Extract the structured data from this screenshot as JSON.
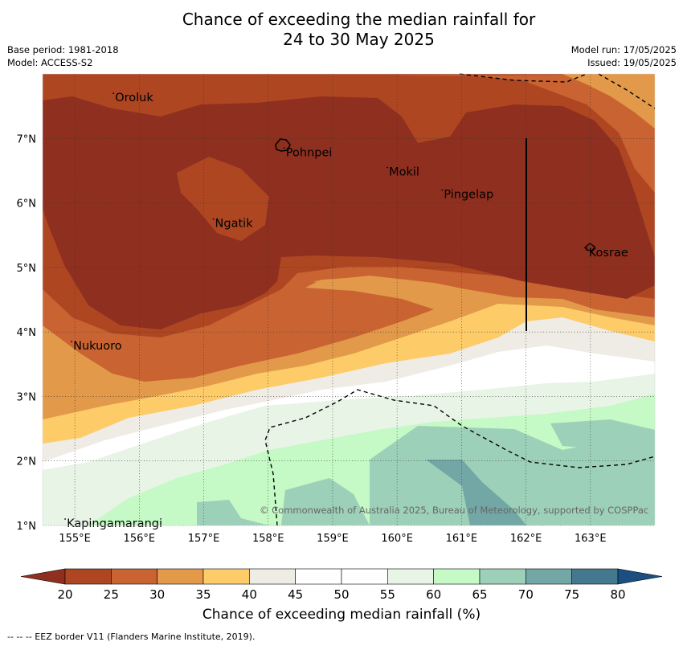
{
  "title": {
    "line1": "Chance of exceeding the median rainfall for",
    "line2": "24 to 30 May 2025"
  },
  "meta": {
    "base_period": "Base period: 1981-2018",
    "model": "Model: ACCESS-S2",
    "model_run": "Model run: 17/05/2025",
    "issued": "Issued: 19/05/2025"
  },
  "map": {
    "longitude_ticks": [
      "155°E",
      "156°E",
      "157°E",
      "158°E",
      "159°E",
      "160°E",
      "161°E",
      "162°E",
      "163°E"
    ],
    "latitude_ticks": [
      "1°N",
      "2°N",
      "3°N",
      "4°N",
      "5°N",
      "6°N",
      "7°N"
    ],
    "lon_range": [
      154.5,
      164
    ],
    "lat_range": [
      1,
      8
    ],
    "places": [
      {
        "name": "Oroluk",
        "lon": 155.6,
        "lat": 7.7
      },
      {
        "name": "Pohnpei",
        "lon": 158.25,
        "lat": 6.85
      },
      {
        "name": "Mokil",
        "lon": 159.85,
        "lat": 6.55
      },
      {
        "name": "Pingelap",
        "lon": 160.7,
        "lat": 6.2
      },
      {
        "name": "Ngatik",
        "lon": 157.15,
        "lat": 5.75
      },
      {
        "name": "Kosrae",
        "lon": 162.95,
        "lat": 5.3
      },
      {
        "name": "Nukuoro",
        "lon": 154.95,
        "lat": 3.85
      },
      {
        "name": "Kapingamarangi",
        "lon": 154.85,
        "lat": 1.1
      }
    ],
    "copyright": "© Commonwealth of Australia 2025, Bureau of Meteorology, supported by COSPPac"
  },
  "colorbar": {
    "ticks": [
      "20",
      "25",
      "30",
      "35",
      "40",
      "45",
      "50",
      "55",
      "60",
      "65",
      "70",
      "75",
      "80"
    ],
    "colors": [
      "#8f2f1f",
      "#ae4622",
      "#c96332",
      "#e2994a",
      "#fdcb68",
      "#eeece4",
      "#ffffff",
      "#ffffff",
      "#e7f4e6",
      "#c5f9c5",
      "#9dd0b8",
      "#72a7a6",
      "#44788f",
      "#1a4f80"
    ],
    "label": "Chance of exceeding median rainfall (%)"
  },
  "footnote": "--  --  -- EEZ border V11 (Flanders Marine Institute, 2019)."
}
